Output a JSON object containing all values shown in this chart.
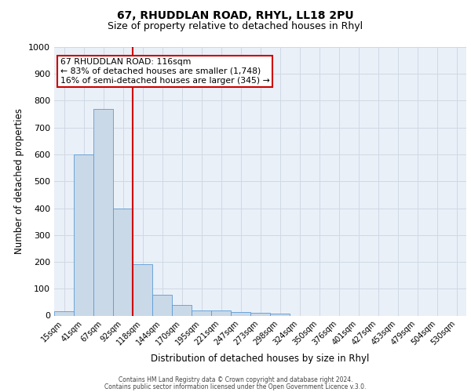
{
  "title": "67, RHUDDLAN ROAD, RHYL, LL18 2PU",
  "subtitle": "Size of property relative to detached houses in Rhyl",
  "xlabel": "Distribution of detached houses by size in Rhyl",
  "ylabel": "Number of detached properties",
  "bar_labels": [
    "15sqm",
    "41sqm",
    "67sqm",
    "92sqm",
    "118sqm",
    "144sqm",
    "170sqm",
    "195sqm",
    "221sqm",
    "247sqm",
    "273sqm",
    "298sqm",
    "324sqm",
    "350sqm",
    "376sqm",
    "401sqm",
    "427sqm",
    "453sqm",
    "479sqm",
    "504sqm",
    "530sqm"
  ],
  "bar_values": [
    15,
    600,
    770,
    400,
    190,
    78,
    38,
    18,
    18,
    13,
    10,
    8,
    0,
    0,
    0,
    0,
    0,
    0,
    0,
    0,
    0
  ],
  "bar_color": "#c9d9e8",
  "bar_edgecolor": "#5b9bd5",
  "vline_x_index": 3.5,
  "vline_color": "#cc0000",
  "ylim": [
    0,
    1000
  ],
  "yticks": [
    0,
    100,
    200,
    300,
    400,
    500,
    600,
    700,
    800,
    900,
    1000
  ],
  "annotation_text": "67 RHUDDLAN ROAD: 116sqm\n← 83% of detached houses are smaller (1,748)\n16% of semi-detached houses are larger (345) →",
  "annotation_box_color": "#ffffff",
  "annotation_box_edgecolor": "#cc0000",
  "grid_color": "#d0d8e4",
  "background_color": "#eaf0f8",
  "footer_line1": "Contains HM Land Registry data © Crown copyright and database right 2024.",
  "footer_line2": "Contains public sector information licensed under the Open Government Licence v.3.0.",
  "title_fontsize": 10,
  "subtitle_fontsize": 9,
  "xlabel_fontsize": 8.5,
  "ylabel_fontsize": 8.5,
  "annotation_fontsize": 7.8,
  "footer_fontsize": 5.5
}
